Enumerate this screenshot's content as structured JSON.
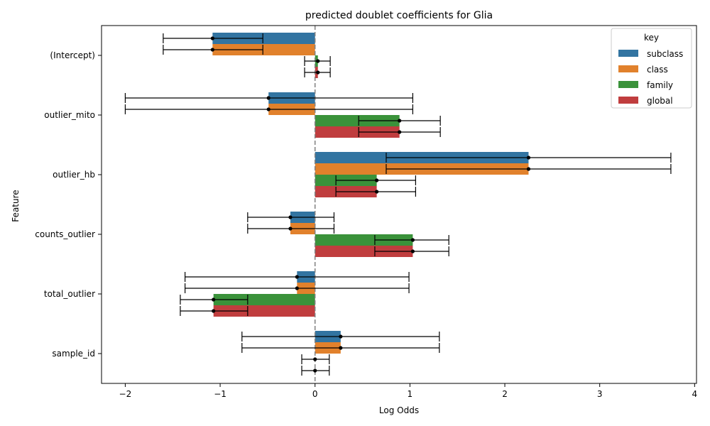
{
  "chart_data": {
    "type": "bar",
    "orientation": "horizontal",
    "title": "predicted doublet coefficients for Glia",
    "xlabel": "Log Odds",
    "ylabel": "Feature",
    "xlim": [
      -2.25,
      4.02
    ],
    "xticks": [
      -2,
      -1,
      0,
      1,
      2,
      3,
      4
    ],
    "reference_line": {
      "x": 0,
      "style": "dashed",
      "color": "#808080"
    },
    "categories": [
      "(Intercept)",
      "outlier_mito",
      "outlier_hb",
      "counts_outlier",
      "total_outlier",
      "sample_id"
    ],
    "legend": {
      "title": "key",
      "position": "top-right"
    },
    "series": [
      {
        "name": "subclass",
        "color": "#3274a1",
        "values": [
          -1.08,
          -0.49,
          2.25,
          -0.26,
          -0.19,
          0.27
        ],
        "error_low": [
          -1.6,
          -2.0,
          0.75,
          -0.71,
          -1.37,
          -0.77
        ],
        "error_high": [
          -0.55,
          1.03,
          3.75,
          0.2,
          0.99,
          1.31
        ]
      },
      {
        "name": "class",
        "color": "#e1812c",
        "values": [
          -1.08,
          -0.49,
          2.25,
          -0.26,
          -0.19,
          0.27
        ],
        "error_low": [
          -1.6,
          -2.0,
          0.75,
          -0.71,
          -1.37,
          -0.77
        ],
        "error_high": [
          -0.55,
          1.03,
          3.75,
          0.2,
          0.99,
          1.31
        ]
      },
      {
        "name": "family",
        "color": "#3a923a",
        "values": [
          0.03,
          0.89,
          0.65,
          1.03,
          -1.07,
          0.0
        ],
        "error_low": [
          -0.11,
          0.46,
          0.22,
          0.63,
          -1.42,
          -0.14
        ],
        "error_high": [
          0.16,
          1.32,
          1.06,
          1.41,
          -0.71,
          0.15
        ]
      },
      {
        "name": "global",
        "color": "#c03d3e",
        "values": [
          0.03,
          0.89,
          0.65,
          1.03,
          -1.07,
          0.0
        ],
        "error_low": [
          -0.11,
          0.46,
          0.22,
          0.63,
          -1.42,
          -0.14
        ],
        "error_high": [
          0.16,
          1.32,
          1.06,
          1.41,
          -0.71,
          0.15
        ]
      }
    ]
  }
}
